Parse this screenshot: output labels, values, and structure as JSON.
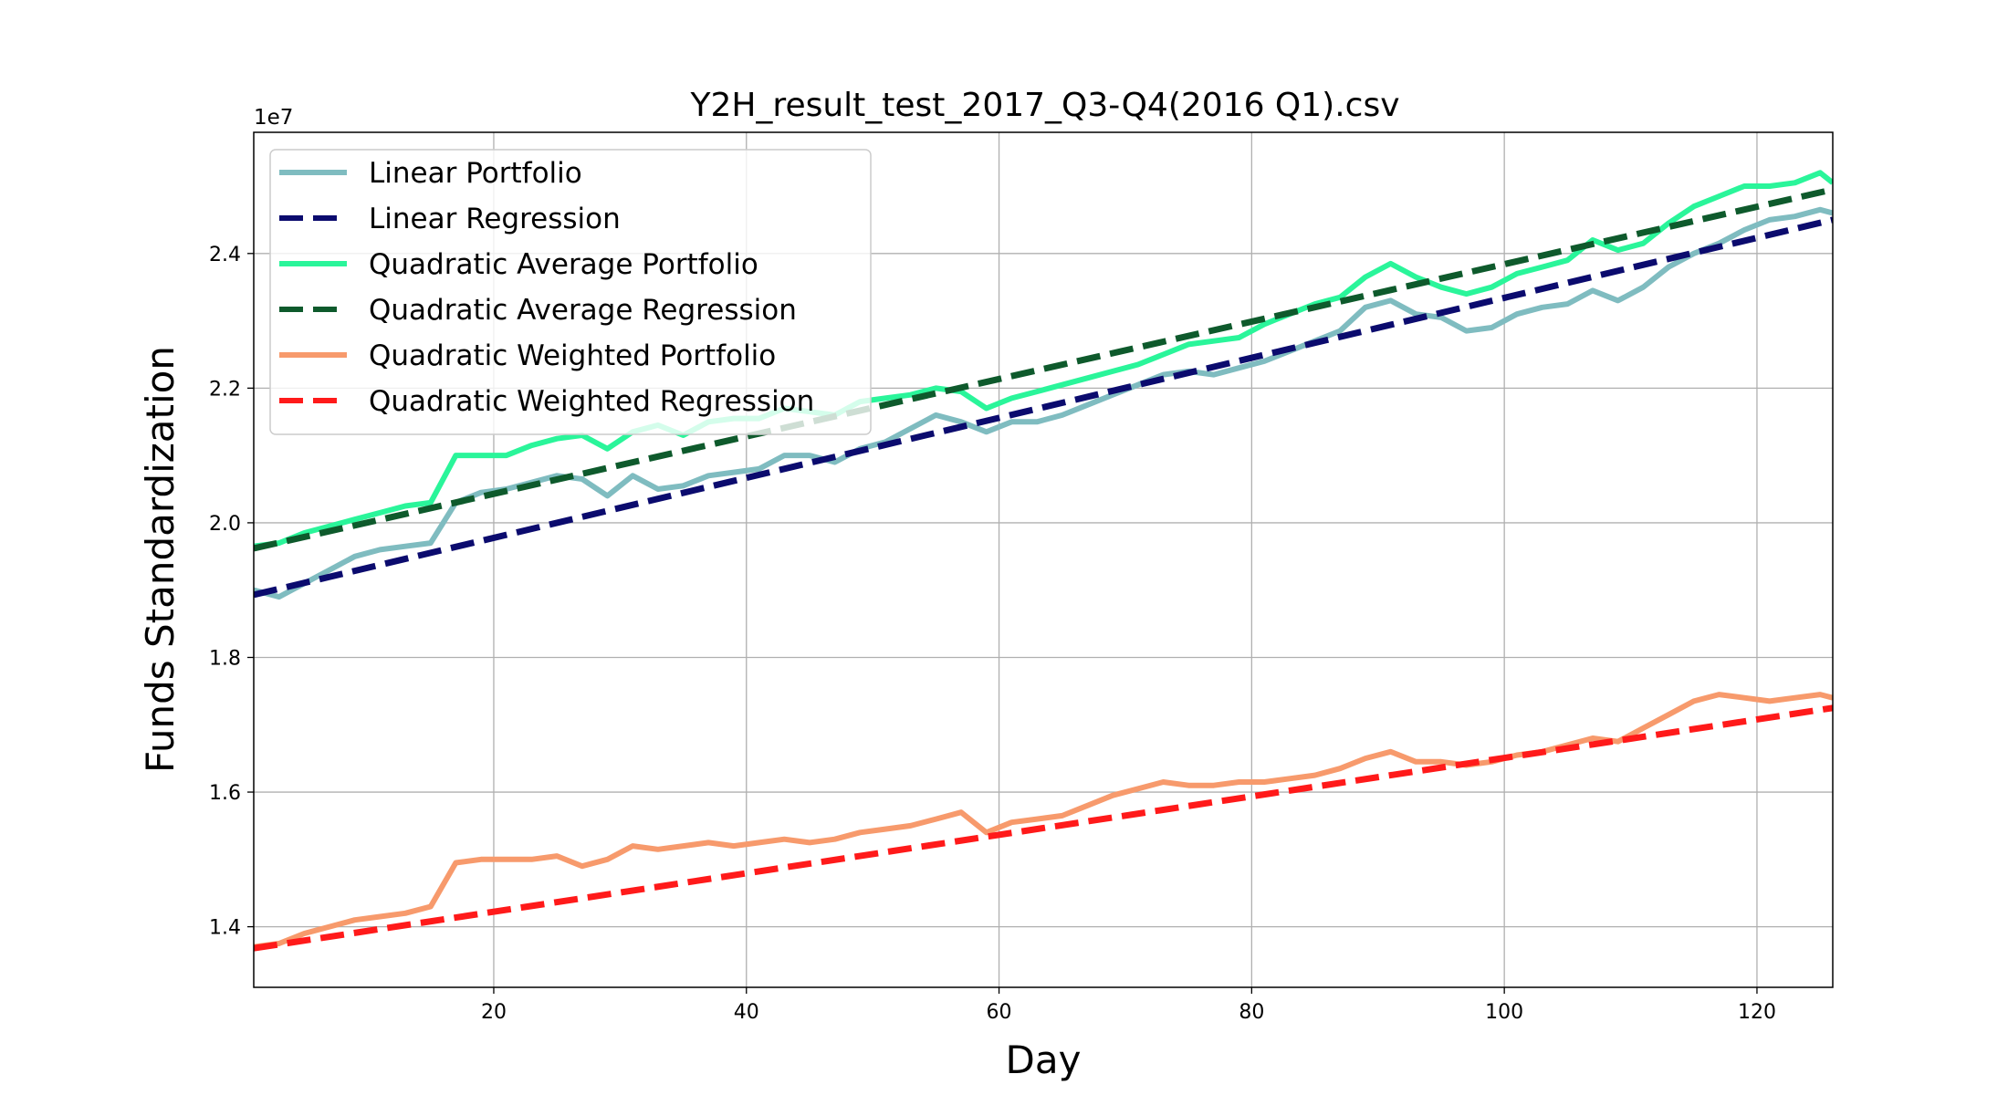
{
  "chart_data": {
    "type": "line",
    "title": "Y2H_result_test_2017_Q3-Q4(2016 Q1).csv",
    "xlabel": "Day",
    "ylabel": "Funds Standardization",
    "y_offset_label": "1e7",
    "xlim": [
      1,
      126
    ],
    "ylim": [
      13100000,
      25800000
    ],
    "x_ticks": [
      20,
      40,
      60,
      80,
      100,
      120
    ],
    "y_ticks": [
      14000000,
      16000000,
      18000000,
      20000000,
      22000000,
      24000000
    ],
    "x_tick_labels": [
      "20",
      "40",
      "60",
      "80",
      "100",
      "120"
    ],
    "y_tick_labels": [
      "1.4",
      "1.6",
      "1.8",
      "2.0",
      "2.2",
      "2.4"
    ],
    "grid": true,
    "legend_position": "top-left",
    "series": [
      {
        "name": "Linear Portfolio",
        "color": "#7fbcc0",
        "style": "solid",
        "x": [
          1,
          3,
          5,
          7,
          9,
          11,
          13,
          15,
          17,
          19,
          21,
          23,
          25,
          27,
          29,
          31,
          33,
          35,
          37,
          39,
          41,
          43,
          45,
          47,
          49,
          51,
          53,
          55,
          57,
          59,
          61,
          63,
          65,
          67,
          69,
          71,
          73,
          75,
          77,
          79,
          81,
          83,
          85,
          87,
          89,
          91,
          93,
          95,
          97,
          99,
          101,
          103,
          105,
          107,
          109,
          111,
          113,
          115,
          117,
          119,
          121,
          123,
          125,
          126
        ],
        "y": [
          19000000,
          18900000,
          19100000,
          19300000,
          19500000,
          19600000,
          19650000,
          19700000,
          20300000,
          20450000,
          20500000,
          20600000,
          20700000,
          20650000,
          20400000,
          20700000,
          20500000,
          20550000,
          20700000,
          20750000,
          20800000,
          21000000,
          21000000,
          20900000,
          21100000,
          21200000,
          21400000,
          21600000,
          21500000,
          21350000,
          21500000,
          21500000,
          21600000,
          21750000,
          21900000,
          22050000,
          22200000,
          22250000,
          22200000,
          22300000,
          22400000,
          22550000,
          22700000,
          22850000,
          23200000,
          23300000,
          23100000,
          23050000,
          22850000,
          22900000,
          23100000,
          23200000,
          23250000,
          23450000,
          23300000,
          23500000,
          23800000,
          24000000,
          24150000,
          24350000,
          24500000,
          24550000,
          24650000,
          24600000
        ]
      },
      {
        "name": "Linear Regression",
        "color": "#0b0b6e",
        "style": "dashed",
        "x": [
          1,
          126
        ],
        "y": [
          18930000,
          24500000
        ]
      },
      {
        "name": "Quadratic Average Portfolio",
        "color": "#2af59a",
        "style": "solid",
        "x": [
          1,
          3,
          5,
          7,
          9,
          11,
          13,
          15,
          17,
          19,
          21,
          23,
          25,
          27,
          29,
          31,
          33,
          35,
          37,
          39,
          41,
          43,
          45,
          47,
          49,
          51,
          53,
          55,
          57,
          59,
          61,
          63,
          65,
          67,
          69,
          71,
          73,
          75,
          77,
          79,
          81,
          83,
          85,
          87,
          89,
          91,
          93,
          95,
          97,
          99,
          101,
          103,
          105,
          107,
          109,
          111,
          113,
          115,
          117,
          119,
          121,
          123,
          125,
          126
        ],
        "y": [
          19650000,
          19700000,
          19850000,
          19950000,
          20050000,
          20150000,
          20250000,
          20300000,
          21000000,
          21000000,
          21000000,
          21150000,
          21250000,
          21300000,
          21100000,
          21350000,
          21450000,
          21300000,
          21500000,
          21550000,
          21550000,
          21700000,
          21650000,
          21600000,
          21800000,
          21850000,
          21900000,
          22000000,
          21950000,
          21700000,
          21850000,
          21950000,
          22050000,
          22150000,
          22250000,
          22350000,
          22500000,
          22650000,
          22700000,
          22750000,
          22950000,
          23100000,
          23250000,
          23350000,
          23650000,
          23850000,
          23650000,
          23500000,
          23400000,
          23500000,
          23700000,
          23800000,
          23900000,
          24200000,
          24050000,
          24150000,
          24450000,
          24700000,
          24850000,
          25000000,
          25000000,
          25050000,
          25200000,
          25050000
        ]
      },
      {
        "name": "Quadratic Average Regression",
        "color": "#0e5a2c",
        "style": "dashed",
        "x": [
          1,
          126
        ],
        "y": [
          19620000,
          24950000
        ]
      },
      {
        "name": "Quadratic Weighted Portfolio",
        "color": "#f79a6c",
        "style": "solid",
        "x": [
          1,
          3,
          5,
          7,
          9,
          11,
          13,
          15,
          17,
          19,
          21,
          23,
          25,
          27,
          29,
          31,
          33,
          35,
          37,
          39,
          41,
          43,
          45,
          47,
          49,
          51,
          53,
          55,
          57,
          59,
          61,
          63,
          65,
          67,
          69,
          71,
          73,
          75,
          77,
          79,
          81,
          83,
          85,
          87,
          89,
          91,
          93,
          95,
          97,
          99,
          101,
          103,
          105,
          107,
          109,
          111,
          113,
          115,
          117,
          119,
          121,
          123,
          125,
          126
        ],
        "y": [
          13700000,
          13750000,
          13900000,
          14000000,
          14100000,
          14150000,
          14200000,
          14300000,
          14950000,
          15000000,
          15000000,
          15000000,
          15050000,
          14900000,
          15000000,
          15200000,
          15150000,
          15200000,
          15250000,
          15200000,
          15250000,
          15300000,
          15250000,
          15300000,
          15400000,
          15450000,
          15500000,
          15600000,
          15700000,
          15400000,
          15550000,
          15600000,
          15650000,
          15800000,
          15950000,
          16050000,
          16150000,
          16100000,
          16100000,
          16150000,
          16150000,
          16200000,
          16250000,
          16350000,
          16500000,
          16600000,
          16450000,
          16450000,
          16400000,
          16450000,
          16550000,
          16600000,
          16700000,
          16800000,
          16750000,
          16950000,
          17150000,
          17350000,
          17450000,
          17400000,
          17350000,
          17400000,
          17450000,
          17400000
        ]
      },
      {
        "name": "Quadratic Weighted Regression",
        "color": "#ff1a1a",
        "style": "dashed",
        "x": [
          1,
          126
        ],
        "y": [
          13680000,
          17250000
        ]
      }
    ]
  }
}
